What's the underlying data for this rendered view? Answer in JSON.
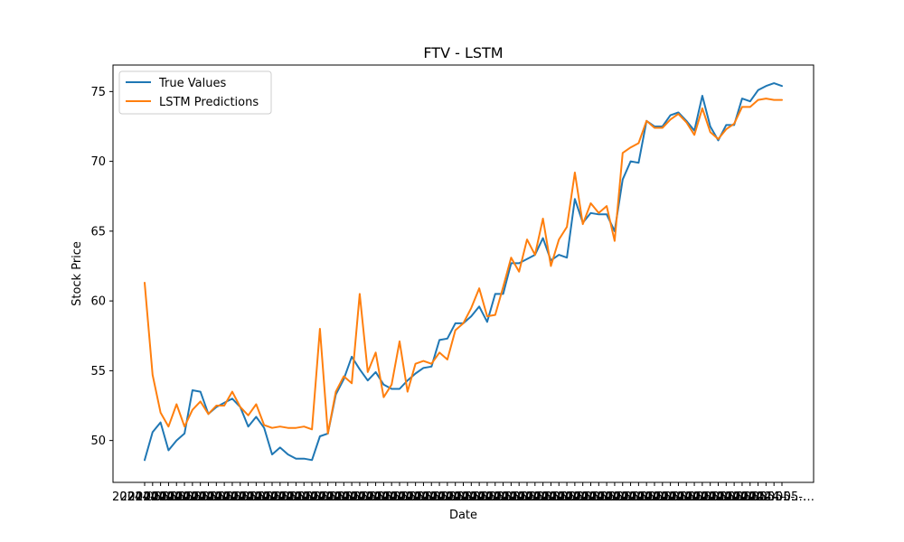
{
  "chart_data": {
    "type": "line",
    "title": "FTV - LSTM",
    "xlabel": "Date",
    "ylabel": "Stock Price",
    "x_tick_text": "2024-05-…",
    "ylim": [
      47.0,
      76.9
    ],
    "yticks": [
      50,
      55,
      60,
      65,
      70,
      75
    ],
    "ytick_labels": [
      "50",
      "55",
      "60",
      "65",
      "70",
      "75"
    ],
    "legend_position": "upper-left",
    "grid": false,
    "series": [
      {
        "name": "True Values",
        "color": "#1f77b4",
        "values": [
          48.6,
          50.6,
          51.3,
          49.3,
          50.0,
          50.5,
          53.6,
          53.5,
          51.9,
          52.4,
          52.7,
          53.0,
          52.4,
          51.0,
          51.7,
          50.9,
          49.0,
          49.5,
          49.0,
          48.7,
          48.7,
          48.6,
          50.3,
          50.5,
          53.3,
          54.4,
          56.0,
          55.1,
          54.3,
          54.9,
          54.0,
          53.7,
          53.7,
          54.3,
          54.8,
          55.2,
          55.3,
          57.2,
          57.3,
          58.4,
          58.4,
          58.9,
          59.6,
          58.5,
          60.5,
          60.5,
          62.7,
          62.7,
          63.0,
          63.3,
          64.5,
          62.9,
          63.3,
          63.1,
          67.3,
          65.6,
          66.3,
          66.2,
          66.2,
          65.0,
          68.7,
          70.0,
          69.9,
          72.9,
          72.5,
          72.5,
          73.3,
          73.5,
          72.9,
          72.2,
          74.7,
          72.5,
          71.5,
          72.6,
          72.6,
          74.5,
          74.3,
          75.1,
          75.4,
          75.6,
          75.4
        ]
      },
      {
        "name": "LSTM Predictions",
        "color": "#ff7f0e",
        "values": [
          61.3,
          54.7,
          52.0,
          51.0,
          52.6,
          51.0,
          52.2,
          52.8,
          51.9,
          52.5,
          52.5,
          53.5,
          52.4,
          51.8,
          52.6,
          51.1,
          50.9,
          51.0,
          50.9,
          50.9,
          51.0,
          50.8,
          58.0,
          50.5,
          53.5,
          54.6,
          54.1,
          60.5,
          54.9,
          56.3,
          53.1,
          54.0,
          57.1,
          53.5,
          55.5,
          55.7,
          55.5,
          56.3,
          55.8,
          57.9,
          58.4,
          59.5,
          60.9,
          58.9,
          59.0,
          61.0,
          63.1,
          62.1,
          64.4,
          63.3,
          65.9,
          62.5,
          64.4,
          65.3,
          69.2,
          65.5,
          67.0,
          66.3,
          66.8,
          64.3,
          70.6,
          71.0,
          71.3,
          72.9,
          72.4,
          72.4,
          73.0,
          73.4,
          72.8,
          71.9,
          73.8,
          72.1,
          71.6,
          72.3,
          72.7,
          73.9,
          73.9,
          74.4,
          74.5,
          74.4,
          74.4
        ]
      }
    ]
  }
}
